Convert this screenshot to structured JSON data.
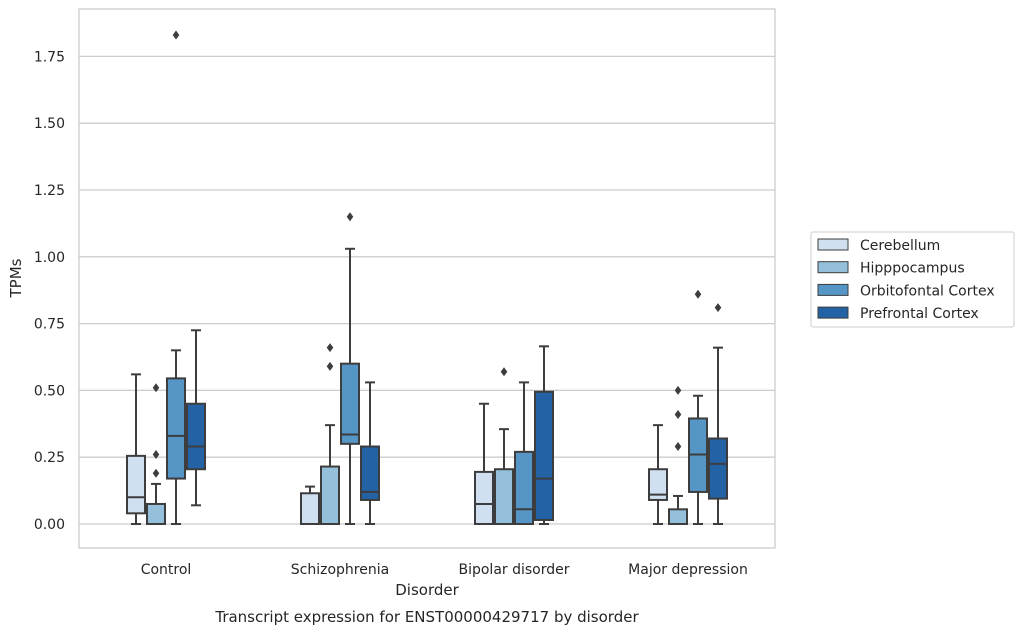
{
  "chart_data": {
    "type": "box",
    "caption": "Transcript expression for ENST00000429717 by disorder",
    "xlabel": "Disorder",
    "ylabel": "TPMs",
    "ylim": [
      -0.09,
      1.93
    ],
    "yticks": [
      "0.00",
      "0.25",
      "0.50",
      "0.75",
      "1.00",
      "1.25",
      "1.50",
      "1.75"
    ],
    "ytick_values": [
      0,
      0.25,
      0.5,
      0.75,
      1.0,
      1.25,
      1.5,
      1.75
    ],
    "grid": "horizontal",
    "legend_position": "right",
    "categories": [
      "Control",
      "Schizophrenia",
      "Bipolar disorder",
      "Major depression"
    ],
    "series": [
      {
        "name": "Cerebellum",
        "color": "#d0e0f0",
        "boxes": [
          {
            "whislo": 0.0,
            "q1": 0.04,
            "med": 0.1,
            "q3": 0.255,
            "whishi": 0.56,
            "fliers": []
          },
          {
            "whislo": 0.0,
            "q1": 0.0,
            "med": 0.0,
            "q3": 0.115,
            "whishi": 0.14,
            "fliers": []
          },
          {
            "whislo": 0.0,
            "q1": 0.0,
            "med": 0.075,
            "q3": 0.195,
            "whishi": 0.45,
            "fliers": []
          },
          {
            "whislo": 0.0,
            "q1": 0.09,
            "med": 0.11,
            "q3": 0.205,
            "whishi": 0.37,
            "fliers": []
          }
        ]
      },
      {
        "name": "Hipppocampus",
        "color": "#95c0dc",
        "boxes": [
          {
            "whislo": 0.0,
            "q1": 0.0,
            "med": 0.0,
            "q3": 0.075,
            "whishi": 0.15,
            "fliers": [
              0.19,
              0.26,
              0.51
            ]
          },
          {
            "whislo": 0.0,
            "q1": 0.0,
            "med": 0.0,
            "q3": 0.215,
            "whishi": 0.37,
            "fliers": [
              0.59,
              0.66
            ]
          },
          {
            "whislo": 0.0,
            "q1": 0.0,
            "med": 0.0,
            "q3": 0.205,
            "whishi": 0.355,
            "fliers": [
              0.57
            ]
          },
          {
            "whislo": 0.0,
            "q1": 0.0,
            "med": 0.0,
            "q3": 0.055,
            "whishi": 0.105,
            "fliers": [
              0.29,
              0.41,
              0.5
            ]
          }
        ]
      },
      {
        "name": "Orbitofontal Cortex",
        "color": "#5596c6",
        "boxes": [
          {
            "whislo": 0.0,
            "q1": 0.17,
            "med": 0.33,
            "q3": 0.545,
            "whishi": 0.65,
            "fliers": [
              1.83
            ]
          },
          {
            "whislo": 0.0,
            "q1": 0.3,
            "med": 0.335,
            "q3": 0.6,
            "whishi": 1.03,
            "fliers": [
              1.15
            ]
          },
          {
            "whislo": 0.0,
            "q1": 0.0,
            "med": 0.055,
            "q3": 0.27,
            "whishi": 0.53,
            "fliers": []
          },
          {
            "whislo": 0.0,
            "q1": 0.12,
            "med": 0.26,
            "q3": 0.395,
            "whishi": 0.48,
            "fliers": [
              0.86
            ]
          }
        ]
      },
      {
        "name": "Prefrontal Cortex",
        "color": "#2262a5",
        "boxes": [
          {
            "whislo": 0.07,
            "q1": 0.205,
            "med": 0.29,
            "q3": 0.45,
            "whishi": 0.725,
            "fliers": []
          },
          {
            "whislo": 0.0,
            "q1": 0.09,
            "med": 0.12,
            "q3": 0.29,
            "whishi": 0.53,
            "fliers": []
          },
          {
            "whislo": 0.0,
            "q1": 0.015,
            "med": 0.17,
            "q3": 0.495,
            "whishi": 0.665,
            "fliers": []
          },
          {
            "whislo": 0.0,
            "q1": 0.095,
            "med": 0.225,
            "q3": 0.32,
            "whishi": 0.66,
            "fliers": [
              0.81
            ]
          }
        ]
      }
    ]
  }
}
